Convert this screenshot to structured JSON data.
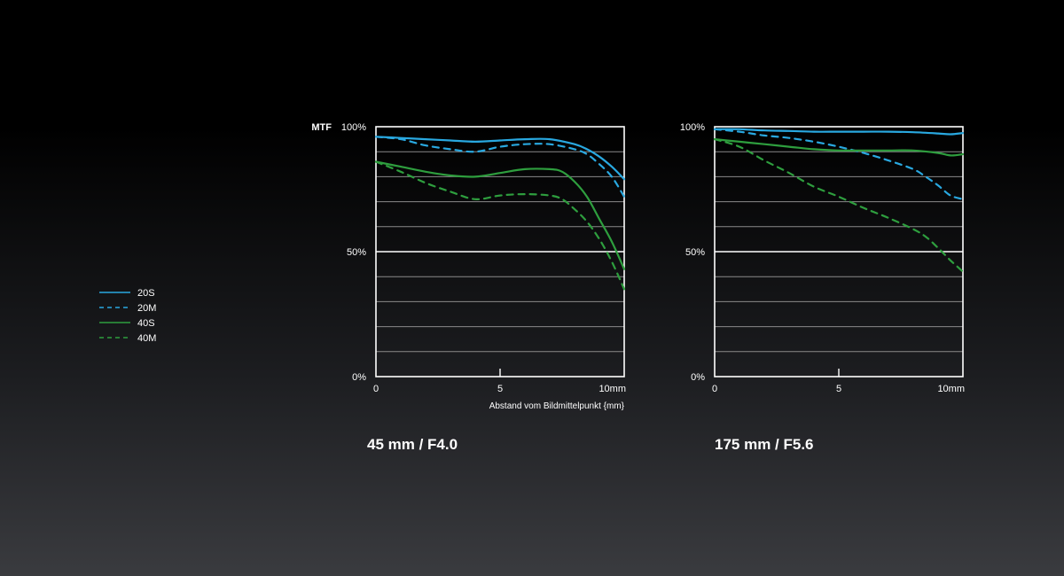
{
  "legend": [
    {
      "label": "20S",
      "color": "#29a8e0",
      "dashed": false
    },
    {
      "label": "20M",
      "color": "#29a8e0",
      "dashed": true
    },
    {
      "label": "40S",
      "color": "#2e9e3e",
      "dashed": false
    },
    {
      "label": "40M",
      "color": "#2e9e3e",
      "dashed": true
    }
  ],
  "ylabel": "MTF",
  "chart_data": [
    {
      "type": "line",
      "title": "45 mm / F4.0",
      "xlabel": "Abstand vom Bildmittelpunkt  {mm}",
      "xlim": [
        0,
        10
      ],
      "ylim": [
        0,
        100
      ],
      "x_ticks": [
        "0",
        "5",
        "10mm"
      ],
      "y_ticks": [
        "0%",
        "50%",
        "100%"
      ],
      "grid": true,
      "series": [
        {
          "name": "20S",
          "x": [
            0,
            1,
            2,
            3,
            4,
            5,
            6,
            7,
            8,
            8.5,
            9,
            9.5,
            10
          ],
          "y": [
            96,
            95.5,
            95,
            94.5,
            94,
            94.5,
            95,
            95,
            93,
            91,
            88,
            84,
            79
          ]
        },
        {
          "name": "20M",
          "x": [
            0,
            1,
            2,
            3,
            4,
            5,
            6,
            7,
            8,
            8.5,
            9,
            9.5,
            10
          ],
          "y": [
            96,
            95,
            92.5,
            91,
            90,
            92,
            93,
            93,
            91,
            89,
            85,
            80,
            72
          ]
        },
        {
          "name": "40S",
          "x": [
            0,
            1,
            2,
            3,
            4,
            5,
            6,
            7,
            7.5,
            8,
            8.5,
            9,
            9.5,
            10
          ],
          "y": [
            86,
            84,
            82,
            80.5,
            80,
            81.5,
            83,
            83,
            82,
            78,
            72,
            63,
            54,
            43
          ]
        },
        {
          "name": "40M",
          "x": [
            0,
            1,
            2,
            3,
            4,
            5,
            6,
            7,
            7.5,
            8,
            8.5,
            9,
            9.5,
            10
          ],
          "y": [
            86,
            82,
            77.5,
            74,
            71,
            72.5,
            73,
            72.5,
            71,
            67,
            62,
            55,
            46,
            35
          ]
        }
      ]
    },
    {
      "type": "line",
      "title": "175 mm / F5.6",
      "xlabel": "",
      "xlim": [
        0,
        10
      ],
      "ylim": [
        0,
        100
      ],
      "x_ticks": [
        "0",
        "5",
        "10mm"
      ],
      "y_ticks": [
        "0%",
        "50%",
        "100%"
      ],
      "grid": true,
      "series": [
        {
          "name": "20S",
          "x": [
            0,
            1,
            2,
            3,
            4,
            5,
            6,
            7,
            8,
            9,
            9.5,
            10
          ],
          "y": [
            99,
            99,
            98.5,
            98.3,
            98,
            98,
            98,
            98,
            97.8,
            97.3,
            97,
            97.5
          ]
        },
        {
          "name": "20M",
          "x": [
            0,
            1,
            2,
            3,
            4,
            5,
            6,
            7,
            8,
            8.5,
            9,
            9.5,
            10
          ],
          "y": [
            99,
            98,
            96.5,
            95.5,
            94,
            92,
            89.5,
            86.5,
            83,
            80,
            76.5,
            72.5,
            71
          ]
        },
        {
          "name": "40S",
          "x": [
            0,
            1,
            2,
            3,
            4,
            5,
            6,
            7,
            8,
            9,
            9.5,
            10
          ],
          "y": [
            95,
            94,
            93,
            92,
            91,
            90.5,
            90.5,
            90.5,
            90.5,
            89.5,
            88.5,
            89
          ]
        },
        {
          "name": "40M",
          "x": [
            0,
            1,
            2,
            3,
            4,
            5,
            6,
            7,
            8,
            8.5,
            9,
            9.5,
            10
          ],
          "y": [
            95,
            92,
            86.5,
            81.5,
            76,
            72,
            67.5,
            63.5,
            59,
            56,
            51.5,
            46.5,
            42
          ]
        }
      ]
    }
  ]
}
